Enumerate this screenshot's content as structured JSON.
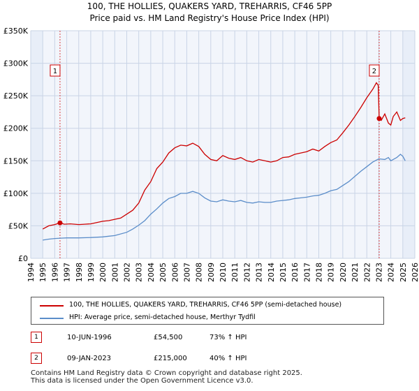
{
  "title_line1": "100, THE HOLLIES, QUAKERS YARD, TREHARRIS, CF46 5PP",
  "title_line2": "Price paid vs. HM Land Registry's House Price Index (HPI)",
  "colors": {
    "property": "#cc0000",
    "hpi": "#5b8dc9",
    "shade": "#e8eef8",
    "grid": "#c9d4e6"
  },
  "chart_data": {
    "type": "line",
    "xlim": [
      1994,
      2026
    ],
    "ylim": [
      0,
      350000
    ],
    "yticks": [
      0,
      50000,
      100000,
      150000,
      200000,
      250000,
      300000,
      350000
    ],
    "ytick_labels": [
      "£0",
      "£50K",
      "£100K",
      "£150K",
      "£200K",
      "£250K",
      "£300K",
      "£350K"
    ],
    "xticks": [
      1994,
      1995,
      1996,
      1997,
      1998,
      1999,
      2000,
      2001,
      2002,
      2003,
      2004,
      2005,
      2006,
      2007,
      2008,
      2009,
      2010,
      2011,
      2012,
      2013,
      2014,
      2015,
      2016,
      2017,
      2018,
      2019,
      2020,
      2021,
      2022,
      2023,
      2024,
      2025,
      2026
    ],
    "xtick_labels": [
      "1994",
      "1995",
      "1996",
      "1997",
      "1998",
      "1999",
      "2000",
      "2001",
      "2002",
      "2003",
      "2004",
      "2005",
      "2006",
      "2007",
      "2008",
      "2009",
      "2010",
      "2011",
      "2012",
      "2013",
      "2014",
      "2015",
      "2016",
      "2017",
      "2018",
      "2019",
      "2020",
      "2021",
      "2022",
      "2023",
      "2024",
      "2025",
      "2026"
    ],
    "shaded_ranges": [
      [
        1994,
        1995.0
      ],
      [
        2025.0,
        2026
      ]
    ],
    "series": [
      {
        "name": "100, THE HOLLIES, QUAKERS YARD, TREHARRIS, CF46 5PP (semi-detached house)",
        "color": "#cc0000",
        "points": [
          [
            1995.0,
            45000
          ],
          [
            1995.5,
            50000
          ],
          [
            1996.0,
            52000
          ],
          [
            1996.44,
            54500
          ],
          [
            1996.8,
            52500
          ],
          [
            1997.3,
            53000
          ],
          [
            1998.0,
            52000
          ],
          [
            1998.5,
            52500
          ],
          [
            1999.0,
            53000
          ],
          [
            1999.5,
            55000
          ],
          [
            2000.0,
            57000
          ],
          [
            2000.5,
            58000
          ],
          [
            2001.0,
            60000
          ],
          [
            2001.5,
            62000
          ],
          [
            2002.0,
            68000
          ],
          [
            2002.5,
            74000
          ],
          [
            2003.0,
            85000
          ],
          [
            2003.5,
            105000
          ],
          [
            2004.0,
            118000
          ],
          [
            2004.5,
            138000
          ],
          [
            2005.0,
            148000
          ],
          [
            2005.5,
            162000
          ],
          [
            2006.0,
            170000
          ],
          [
            2006.5,
            174000
          ],
          [
            2007.0,
            173000
          ],
          [
            2007.5,
            177000
          ],
          [
            2008.0,
            172000
          ],
          [
            2008.5,
            160000
          ],
          [
            2009.0,
            152000
          ],
          [
            2009.5,
            150000
          ],
          [
            2010.0,
            158000
          ],
          [
            2010.5,
            154000
          ],
          [
            2011.0,
            152000
          ],
          [
            2011.5,
            155000
          ],
          [
            2012.0,
            150000
          ],
          [
            2012.5,
            148000
          ],
          [
            2013.0,
            152000
          ],
          [
            2013.5,
            150000
          ],
          [
            2014.0,
            148000
          ],
          [
            2014.5,
            150000
          ],
          [
            2015.0,
            155000
          ],
          [
            2015.5,
            156000
          ],
          [
            2016.0,
            160000
          ],
          [
            2016.5,
            162000
          ],
          [
            2017.0,
            164000
          ],
          [
            2017.5,
            168000
          ],
          [
            2018.0,
            165000
          ],
          [
            2018.5,
            172000
          ],
          [
            2019.0,
            178000
          ],
          [
            2019.5,
            182000
          ],
          [
            2020.0,
            193000
          ],
          [
            2020.5,
            205000
          ],
          [
            2021.0,
            218000
          ],
          [
            2021.5,
            232000
          ],
          [
            2022.0,
            247000
          ],
          [
            2022.5,
            260000
          ],
          [
            2022.8,
            270000
          ],
          [
            2022.95,
            266000
          ],
          [
            2023.03,
            215000
          ],
          [
            2023.2,
            212000
          ],
          [
            2023.5,
            222000
          ],
          [
            2023.8,
            208000
          ],
          [
            2024.0,
            205000
          ],
          [
            2024.2,
            218000
          ],
          [
            2024.5,
            225000
          ],
          [
            2024.8,
            212000
          ],
          [
            2025.0,
            215000
          ],
          [
            2025.2,
            216000
          ]
        ]
      },
      {
        "name": "HPI: Average price, semi-detached house, Merthyr Tydfil",
        "color": "#5b8dc9",
        "points": [
          [
            1995.0,
            28000
          ],
          [
            1995.5,
            29500
          ],
          [
            1996.0,
            30500
          ],
          [
            1996.5,
            31000
          ],
          [
            1997.0,
            31500
          ],
          [
            1998.0,
            31500
          ],
          [
            1999.0,
            32000
          ],
          [
            2000.0,
            33000
          ],
          [
            2000.5,
            34000
          ],
          [
            2001.0,
            35000
          ],
          [
            2002.0,
            40000
          ],
          [
            2002.5,
            45000
          ],
          [
            2003.0,
            51000
          ],
          [
            2003.5,
            58000
          ],
          [
            2004.0,
            68000
          ],
          [
            2004.5,
            76000
          ],
          [
            2005.0,
            85000
          ],
          [
            2005.5,
            92000
          ],
          [
            2006.0,
            95000
          ],
          [
            2006.5,
            100000
          ],
          [
            2007.0,
            100000
          ],
          [
            2007.5,
            103000
          ],
          [
            2008.0,
            100000
          ],
          [
            2008.5,
            93000
          ],
          [
            2009.0,
            88000
          ],
          [
            2009.5,
            87000
          ],
          [
            2010.0,
            90000
          ],
          [
            2010.5,
            88000
          ],
          [
            2011.0,
            87000
          ],
          [
            2011.5,
            89000
          ],
          [
            2012.0,
            86000
          ],
          [
            2012.5,
            85000
          ],
          [
            2013.0,
            87000
          ],
          [
            2013.5,
            86000
          ],
          [
            2014.0,
            86000
          ],
          [
            2014.5,
            88000
          ],
          [
            2015.0,
            89000
          ],
          [
            2015.5,
            90000
          ],
          [
            2016.0,
            92000
          ],
          [
            2016.5,
            93000
          ],
          [
            2017.0,
            94000
          ],
          [
            2017.5,
            96000
          ],
          [
            2018.0,
            97000
          ],
          [
            2018.5,
            100000
          ],
          [
            2019.0,
            104000
          ],
          [
            2019.5,
            106000
          ],
          [
            2020.0,
            112000
          ],
          [
            2020.5,
            118000
          ],
          [
            2021.0,
            126000
          ],
          [
            2021.5,
            134000
          ],
          [
            2022.0,
            141000
          ],
          [
            2022.5,
            148000
          ],
          [
            2023.0,
            153000
          ],
          [
            2023.5,
            152000
          ],
          [
            2023.8,
            155000
          ],
          [
            2024.0,
            150000
          ],
          [
            2024.5,
            155000
          ],
          [
            2024.8,
            160000
          ],
          [
            2025.0,
            157000
          ],
          [
            2025.2,
            150000
          ]
        ]
      }
    ],
    "sale_markers": [
      {
        "label": "1",
        "x": 1996.44,
        "y": 54500
      },
      {
        "label": "2",
        "x": 2023.03,
        "y": 215000
      }
    ]
  },
  "legend": {
    "property_label": "100, THE HOLLIES, QUAKERS YARD, TREHARRIS, CF46 5PP (semi-detached house)",
    "hpi_label": "HPI: Average price, semi-detached house, Merthyr Tydfil"
  },
  "sales": [
    {
      "label": "1",
      "date": "10-JUN-1996",
      "price": "£54,500",
      "hpi": "73% ↑ HPI"
    },
    {
      "label": "2",
      "date": "09-JAN-2023",
      "price": "£215,000",
      "hpi": "40% ↑ HPI"
    }
  ],
  "footer_line1": "Contains HM Land Registry data © Crown copyright and database right 2025.",
  "footer_line2": "This data is licensed under the Open Government Licence v3.0."
}
